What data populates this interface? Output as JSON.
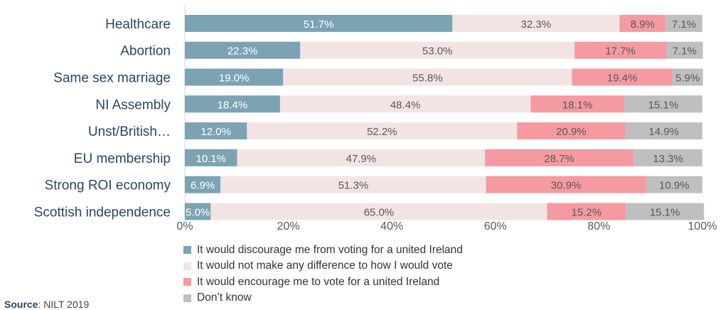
{
  "chart_data": {
    "type": "bar",
    "orientation": "horizontal",
    "stacked": true,
    "percent_stacked": true,
    "categories": [
      "Healthcare",
      "Abortion",
      "Same sex marriage",
      "NI Assembly",
      "Unst/British…",
      "EU membership",
      "Strong ROI economy",
      "Scottish independence"
    ],
    "series": [
      {
        "name": "It would discourage me from voting for a united Ireland",
        "color": "#7ca3b4",
        "label_color": "#ffffff",
        "values": [
          51.7,
          22.3,
          19.0,
          18.4,
          12.0,
          10.1,
          6.9,
          5.0
        ]
      },
      {
        "name": "It would not make any difference to how I would vote",
        "color": "#f3e4e4",
        "label_color": "#595959",
        "values": [
          32.3,
          53.0,
          55.8,
          48.4,
          52.2,
          47.9,
          51.3,
          65.0
        ]
      },
      {
        "name": "It would encourage me to vote for a united Ireland",
        "color": "#f49aa0",
        "label_color": "#595959",
        "values": [
          8.9,
          17.7,
          19.4,
          18.1,
          20.9,
          28.7,
          30.9,
          15.2
        ]
      },
      {
        "name": "Don’t know",
        "color": "#bfbfbf",
        "label_color": "#595959",
        "values": [
          7.1,
          7.1,
          5.9,
          15.1,
          14.9,
          13.3,
          10.9,
          15.1
        ]
      }
    ],
    "value_labels": [
      [
        "51.7%",
        "22.3%",
        "19.0%",
        "18.4%",
        "12.0%",
        "10.1%",
        "6.9%",
        "5.0%"
      ],
      [
        "32.3%",
        "53.0%",
        "55.8%",
        "48.4%",
        "52.2%",
        "47.9%",
        "51.3%",
        "65.0%"
      ],
      [
        "8.9%",
        "17.7%",
        "19.4%",
        "18.1%",
        "20.9%",
        "28.7%",
        "30.9%",
        "15.2%"
      ],
      [
        "7.1%",
        "7.1%",
        "5.9%",
        "15.1%",
        "14.9%",
        "13.3%",
        "10.9%",
        "15.1%"
      ]
    ],
    "xlim": [
      0,
      100
    ],
    "xticks": [
      "0%",
      "20%",
      "40%",
      "60%",
      "80%",
      "100%"
    ],
    "legend_position": "bottom",
    "grid": false
  },
  "source": {
    "label": "Source",
    "text": ": NILT 2019"
  }
}
